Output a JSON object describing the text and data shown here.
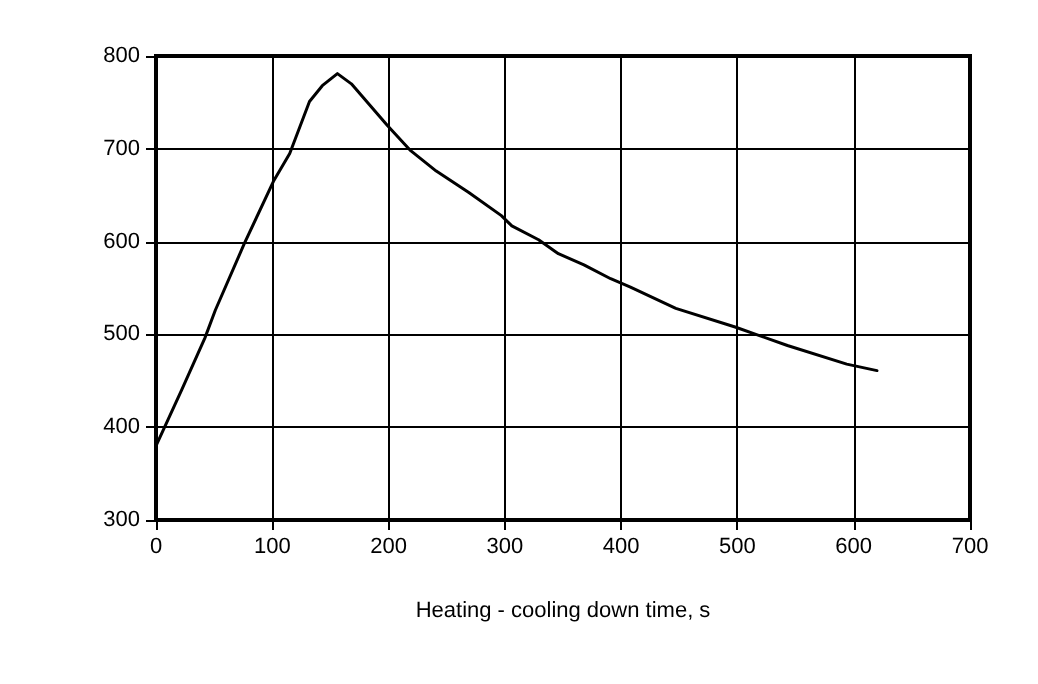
{
  "chart_data": {
    "type": "line",
    "xlabel": "Heating - cooling down time, s",
    "xlim": [
      0,
      700
    ],
    "xticks": [
      0,
      100,
      200,
      300,
      400,
      500,
      600,
      700
    ],
    "ylim": [
      300,
      800
    ],
    "yticks": [
      300,
      400,
      500,
      600,
      700,
      800
    ],
    "grid": true,
    "marker": "none",
    "line_style": "solid",
    "series": [
      {
        "color": "#000000",
        "x": [
          0,
          22,
          42,
          51,
          76,
          101,
          115,
          132,
          143,
          156,
          168,
          199,
          219,
          241,
          269,
          297,
          306,
          329,
          346,
          368,
          391,
          408,
          447,
          498,
          543,
          594,
          620
        ],
        "values": [
          380,
          440,
          496,
          526,
          598,
          665,
          695,
          751,
          768,
          781,
          770,
          725,
          698,
          676,
          653,
          628,
          617,
          602,
          587,
          575,
          560,
          551,
          528,
          508,
          488,
          468,
          461
        ]
      }
    ]
  }
}
